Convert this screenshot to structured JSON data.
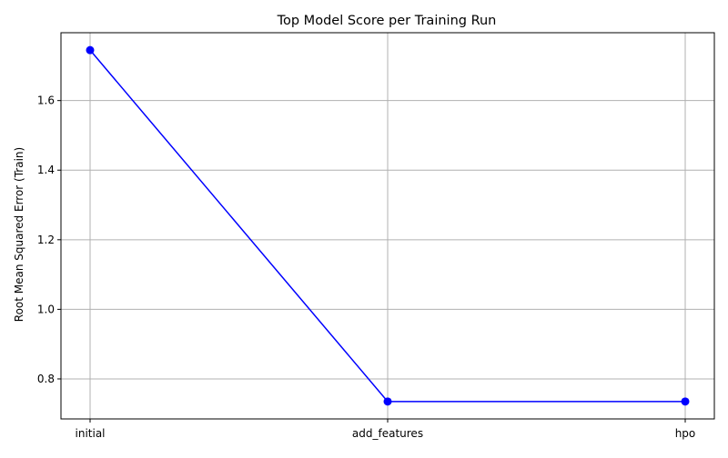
{
  "chart_data": {
    "type": "line",
    "title": "Top Model Score per Training Run",
    "xlabel": "",
    "ylabel": "Root Mean Squared Error (Train)",
    "categories": [
      "initial",
      "add_features",
      "hpo"
    ],
    "series": [
      {
        "values": [
          1.745,
          0.735,
          0.735
        ],
        "color": "#0000ff",
        "marker": "circle"
      }
    ],
    "ylim": [
      0.685,
      1.795
    ],
    "yticks": [
      0.8,
      1.0,
      1.2,
      1.4,
      1.6
    ],
    "ytick_labels": [
      "0.8",
      "1.0",
      "1.2",
      "1.4",
      "1.6"
    ],
    "grid": true,
    "grid_color": "#b0b0b0"
  }
}
